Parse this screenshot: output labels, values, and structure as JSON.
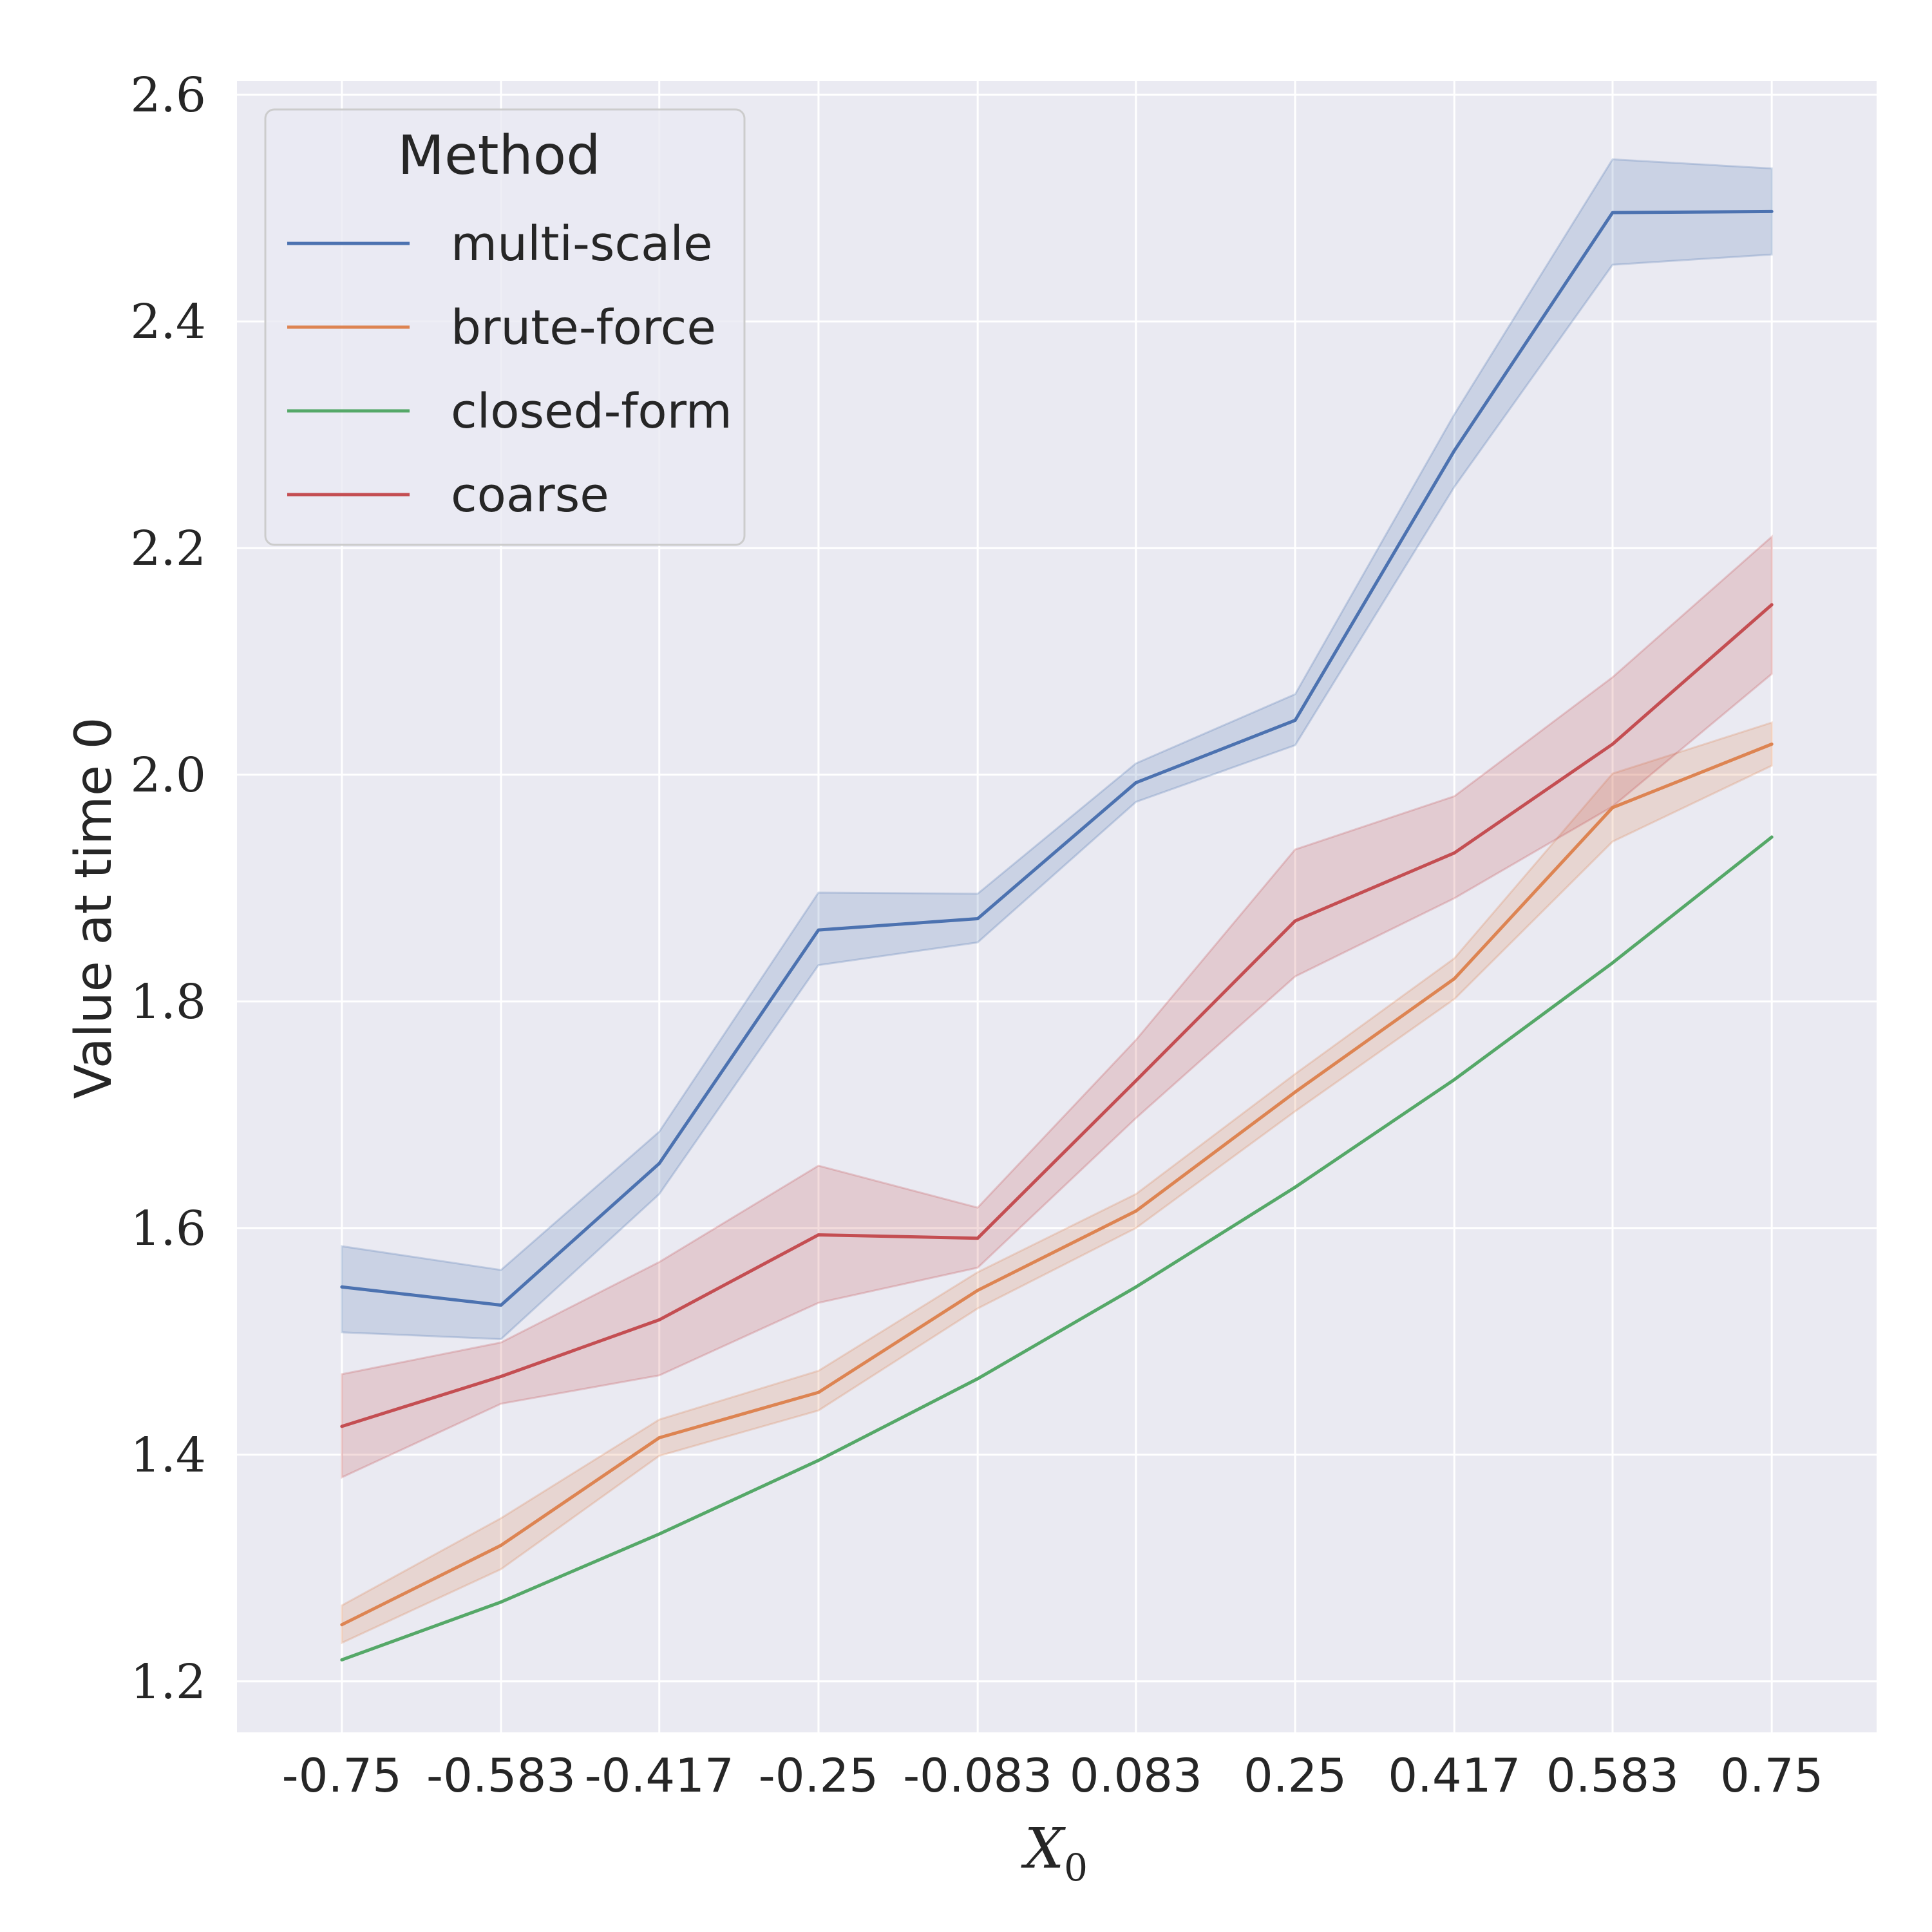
{
  "chart_data": {
    "type": "line",
    "xlabel": "X",
    "xlabel_subscript": "0",
    "ylabel": "Value at time 0",
    "x": [
      -0.75,
      -0.583,
      -0.417,
      -0.25,
      -0.083,
      0.083,
      0.25,
      0.417,
      0.583,
      0.75
    ],
    "x_tick_labels": [
      "-0.75",
      "-0.583",
      "-0.417",
      "-0.25",
      "-0.083",
      "0.083",
      "0.25",
      "0.417",
      "0.583",
      "0.75"
    ],
    "y_ticks": [
      1.2,
      1.4,
      1.6,
      1.8,
      2.0,
      2.2,
      2.4,
      2.6
    ],
    "y_tick_labels": [
      "1.2",
      "1.4",
      "1.6",
      "1.8",
      "2.0",
      "2.2",
      "2.4",
      "2.6"
    ],
    "xlim": [
      -0.86,
      0.86
    ],
    "ylim": [
      1.155,
      2.612
    ],
    "grid": true,
    "background": "#eaeaf2",
    "legend": {
      "title": "Method",
      "placement": "top-left"
    },
    "series": [
      {
        "name": "multi-scale",
        "color": "#4c72b0",
        "values": [
          1.548,
          1.532,
          1.657,
          1.863,
          1.873,
          1.993,
          2.048,
          2.286,
          2.496,
          2.497
        ],
        "lower": [
          1.508,
          1.502,
          1.63,
          1.832,
          1.852,
          1.976,
          2.026,
          2.254,
          2.45,
          2.459
        ],
        "upper": [
          1.584,
          1.563,
          1.685,
          1.896,
          1.895,
          2.01,
          2.071,
          2.318,
          2.543,
          2.535
        ]
      },
      {
        "name": "brute-force",
        "color": "#dd8452",
        "values": [
          1.25,
          1.32,
          1.415,
          1.455,
          1.545,
          1.615,
          1.72,
          1.82,
          1.971,
          2.027
        ],
        "lower": [
          1.234,
          1.299,
          1.399,
          1.439,
          1.529,
          1.6,
          1.703,
          1.802,
          1.941,
          2.008
        ],
        "upper": [
          1.267,
          1.344,
          1.431,
          1.474,
          1.561,
          1.63,
          1.736,
          1.838,
          2.001,
          2.046
        ]
      },
      {
        "name": "closed-form",
        "color": "#55a868",
        "values": [
          1.219,
          1.27,
          1.33,
          1.395,
          1.467,
          1.548,
          1.636,
          1.731,
          1.834,
          1.945
        ]
      },
      {
        "name": "coarse",
        "color": "#c44e52",
        "values": [
          1.425,
          1.469,
          1.519,
          1.594,
          1.591,
          1.73,
          1.871,
          1.931,
          2.027,
          2.15
        ],
        "lower": [
          1.38,
          1.445,
          1.47,
          1.534,
          1.565,
          1.697,
          1.822,
          1.891,
          1.972,
          2.089
        ],
        "upper": [
          1.471,
          1.499,
          1.57,
          1.655,
          1.618,
          1.766,
          1.934,
          1.981,
          2.086,
          2.21
        ]
      }
    ]
  }
}
